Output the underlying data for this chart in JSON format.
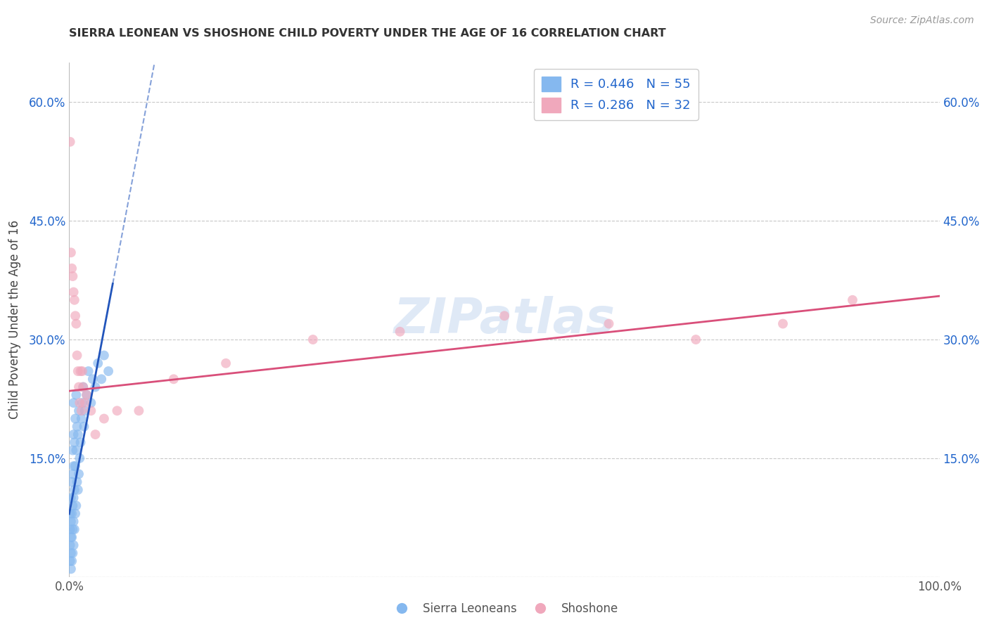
{
  "title": "SIERRA LEONEAN VS SHOSHONE CHILD POVERTY UNDER THE AGE OF 16 CORRELATION CHART",
  "source": "Source: ZipAtlas.com",
  "ylabel": "Child Poverty Under the Age of 16",
  "xlim": [
    0,
    1.0
  ],
  "ylim": [
    0,
    0.65
  ],
  "ytick_vals": [
    0.0,
    0.15,
    0.3,
    0.45,
    0.6
  ],
  "ytick_labels_left": [
    "",
    "15.0%",
    "30.0%",
    "45.0%",
    "60.0%"
  ],
  "ytick_labels_right": [
    "",
    "15.0%",
    "30.0%",
    "45.0%",
    "60.0%"
  ],
  "xtick_vals": [
    0.0,
    0.5,
    1.0
  ],
  "xtick_labels": [
    "0.0%",
    "",
    "100.0%"
  ],
  "blue_color": "#85b8ef",
  "pink_color": "#f0a8bc",
  "trend_blue": "#2255bb",
  "trend_pink": "#d94f7a",
  "watermark": "ZIPatlas",
  "background_color": "#ffffff",
  "grid_color": "#c8c8c8",
  "legend_r1": "R = 0.446   N = 55",
  "legend_r2": "R = 0.286   N = 32",
  "legend_color": "#2266cc",
  "bottom_legend": [
    "Sierra Leoneans",
    "Shoshone"
  ],
  "sierra_x": [
    0.001,
    0.001,
    0.001,
    0.001,
    0.002,
    0.002,
    0.002,
    0.002,
    0.002,
    0.003,
    0.003,
    0.003,
    0.003,
    0.004,
    0.004,
    0.004,
    0.004,
    0.004,
    0.005,
    0.005,
    0.005,
    0.005,
    0.005,
    0.005,
    0.006,
    0.006,
    0.006,
    0.007,
    0.007,
    0.007,
    0.008,
    0.008,
    0.008,
    0.009,
    0.009,
    0.01,
    0.01,
    0.011,
    0.011,
    0.012,
    0.013,
    0.014,
    0.015,
    0.016,
    0.017,
    0.018,
    0.02,
    0.022,
    0.025,
    0.027,
    0.03,
    0.033,
    0.037,
    0.04,
    0.045
  ],
  "sierra_y": [
    0.02,
    0.04,
    0.06,
    0.08,
    0.01,
    0.03,
    0.05,
    0.07,
    0.1,
    0.02,
    0.05,
    0.08,
    0.12,
    0.03,
    0.06,
    0.09,
    0.13,
    0.16,
    0.04,
    0.07,
    0.1,
    0.14,
    0.18,
    0.22,
    0.06,
    0.11,
    0.17,
    0.08,
    0.14,
    0.2,
    0.09,
    0.16,
    0.23,
    0.12,
    0.19,
    0.11,
    0.18,
    0.13,
    0.21,
    0.15,
    0.17,
    0.2,
    0.22,
    0.24,
    0.19,
    0.21,
    0.23,
    0.26,
    0.22,
    0.25,
    0.24,
    0.27,
    0.25,
    0.28,
    0.26
  ],
  "shoshone_x": [
    0.001,
    0.002,
    0.003,
    0.004,
    0.005,
    0.006,
    0.007,
    0.008,
    0.009,
    0.01,
    0.011,
    0.012,
    0.013,
    0.014,
    0.015,
    0.016,
    0.018,
    0.02,
    0.025,
    0.03,
    0.04,
    0.055,
    0.08,
    0.12,
    0.18,
    0.28,
    0.38,
    0.5,
    0.62,
    0.72,
    0.82,
    0.9
  ],
  "shoshone_y": [
    0.55,
    0.41,
    0.39,
    0.38,
    0.36,
    0.35,
    0.33,
    0.32,
    0.28,
    0.26,
    0.24,
    0.22,
    0.26,
    0.21,
    0.26,
    0.24,
    0.22,
    0.23,
    0.21,
    0.18,
    0.2,
    0.21,
    0.21,
    0.25,
    0.27,
    0.3,
    0.31,
    0.33,
    0.32,
    0.3,
    0.32,
    0.35
  ],
  "sierra_trend_x0": 0.0,
  "sierra_trend_x1": 0.05,
  "sierra_trend_dash_x0": 0.05,
  "sierra_trend_dash_x1": 0.19,
  "pink_trend_y_at_0": 0.235,
  "pink_trend_y_at_1": 0.355
}
